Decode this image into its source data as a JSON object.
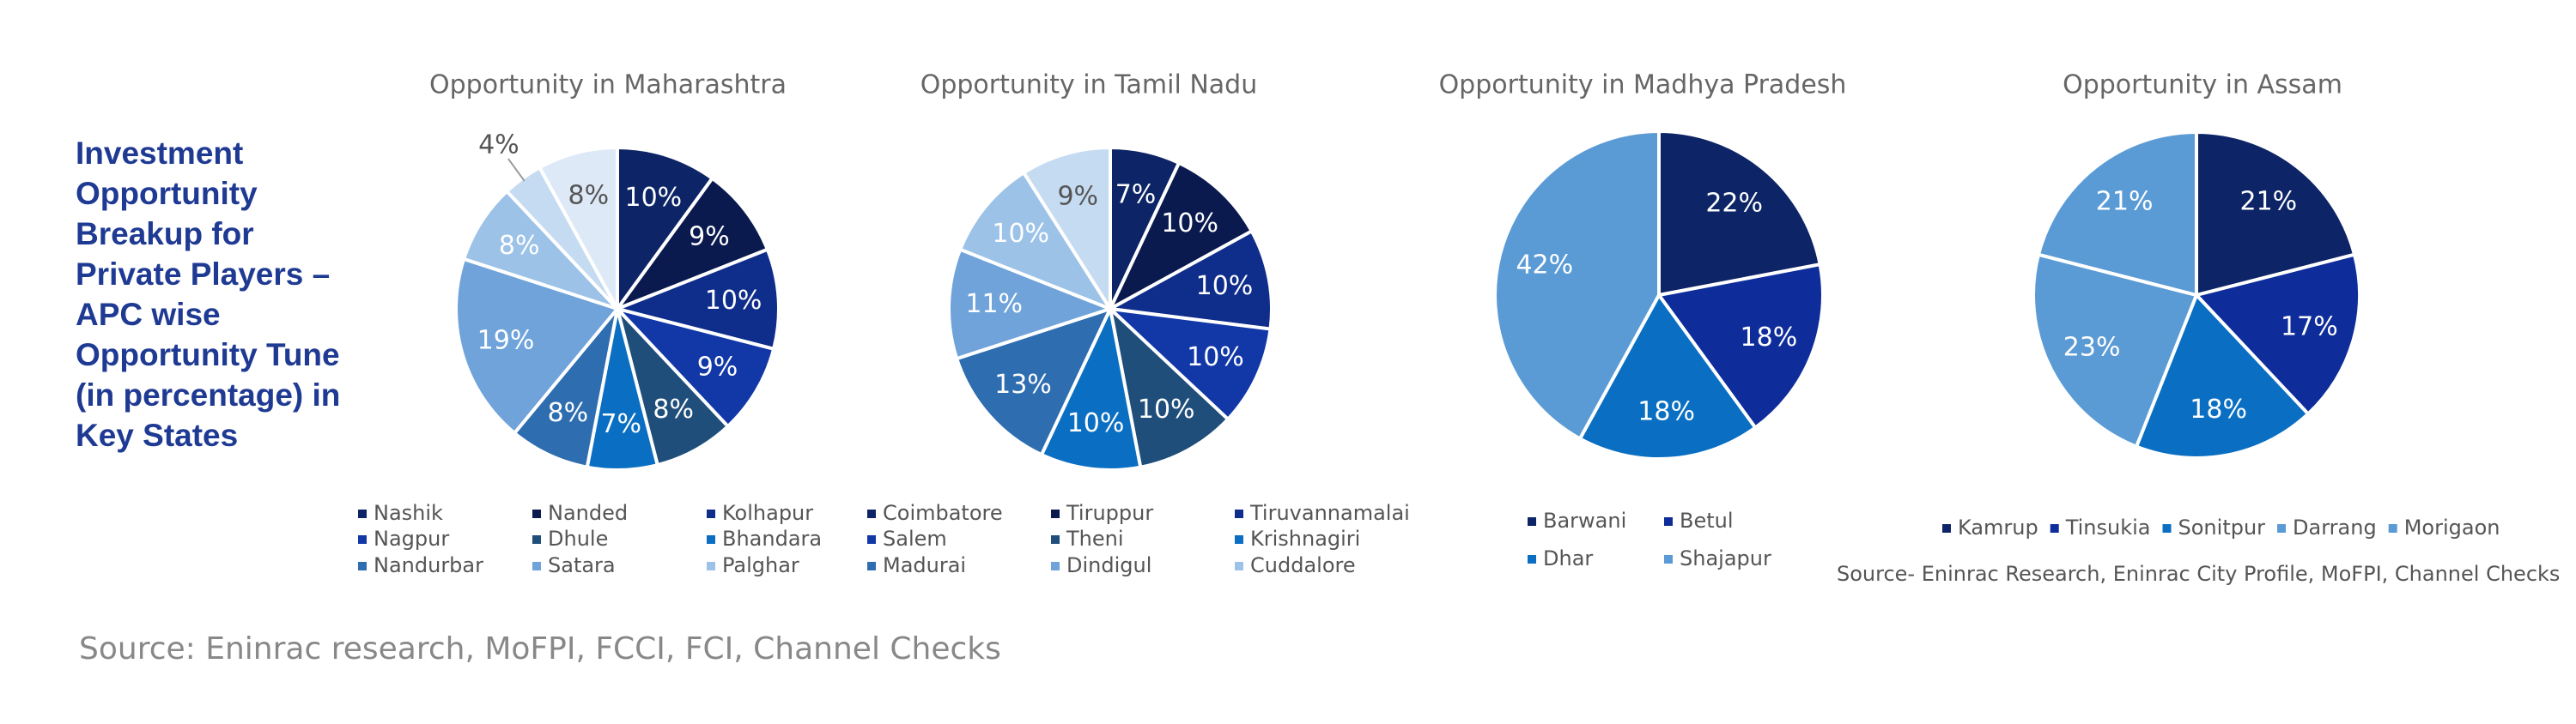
{
  "heading": "Investment Opportunity Breakup for Private Players – APC wise Opportunity Tune (in percentage) in Key States",
  "source": "Source: Eninrac research, MoFPI, FCCI, FCI, Channel Checks",
  "chart_data": [
    {
      "type": "pie",
      "title": "Opportunity in Maharashtra",
      "categories": [
        "Nashik",
        "Nanded",
        "Kolhapur",
        "Nagpur",
        "Dhule",
        "Bhandara",
        "Nandurbar",
        "Satara",
        "Palghar",
        null,
        null
      ],
      "values": [
        10,
        9,
        10,
        9,
        8,
        7,
        8,
        19,
        8,
        4,
        8
      ],
      "value_labels": [
        "10%",
        "9%",
        "10%",
        "9%",
        "8%",
        "7%",
        "8%",
        "19%",
        "8%",
        "4%",
        "8%"
      ],
      "colors": [
        "#0d2466",
        "#0a1a4f",
        "#0f2d8a",
        "#1238a8",
        "#1f4e7a",
        "#0a6fc2",
        "#2e6eb0",
        "#6fa3da",
        "#9cc2e8",
        "#c5dbf1",
        "#dde9f7"
      ]
    },
    {
      "type": "pie",
      "title": "Opportunity in Tamil Nadu",
      "categories": [
        "Coimbatore",
        "Tiruppur",
        "Tiruvannamalai",
        "Salem",
        "Theni",
        "Krishnagiri",
        "Madurai",
        "Dindigul",
        "Cuddalore",
        null
      ],
      "values": [
        7,
        10,
        10,
        10,
        10,
        10,
        13,
        11,
        10,
        9
      ],
      "value_labels": [
        "7%",
        "10%",
        "10%",
        "10%",
        "10%",
        "10%",
        "13%",
        "11%",
        "10%",
        "9%"
      ],
      "colors": [
        "#0d2466",
        "#0a1a4f",
        "#0f2d8a",
        "#1238a8",
        "#1f4e7a",
        "#0a6fc2",
        "#2e6eb0",
        "#6fa3da",
        "#9cc2e8",
        "#c5dbf1"
      ]
    },
    {
      "type": "pie",
      "title": "Opportunity in Madhya Pradesh",
      "categories": [
        "Barwani",
        "Betul",
        "Dhar",
        "Shajapur"
      ],
      "values": [
        22,
        18,
        18,
        42
      ],
      "value_labels": [
        "22%",
        "18%",
        "18%",
        "42%"
      ],
      "colors": [
        "#0d2466",
        "#0f2d9a",
        "#0a6fc2",
        "#5b9bd5"
      ]
    },
    {
      "type": "pie",
      "title": "Opportunity in Assam",
      "categories": [
        "Kamrup",
        "Tinsukia",
        "Sonitpur",
        "Darrang",
        "Morigaon"
      ],
      "values": [
        21,
        17,
        18,
        23,
        21
      ],
      "value_labels": [
        "21%",
        "17%",
        "18%",
        "23%",
        "21%"
      ],
      "colors": [
        "#0d2466",
        "#0f2d9a",
        "#0a6fc2",
        "#5b9bd5",
        "#5b9bd5"
      ],
      "annotation": "Source- Eninrac Research, Eninrac City Profile, MoFPI, Channel Checks"
    }
  ]
}
